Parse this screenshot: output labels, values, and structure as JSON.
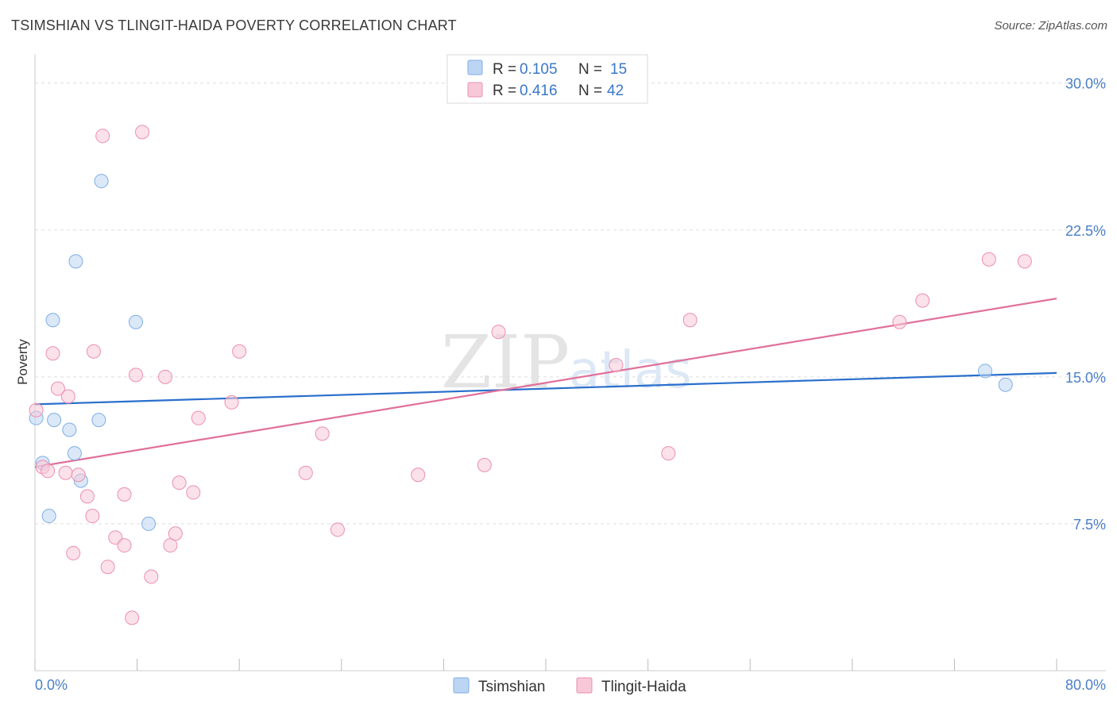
{
  "header": {
    "title": "TSIMSHIAN VS TLINGIT-HAIDA POVERTY CORRELATION CHART",
    "source": "Source: ZipAtlas.com"
  },
  "colors": {
    "tsimshian": "#7eaee6",
    "tsimshian_fill": "#bcd5f3",
    "tlingit": "#ec8fad",
    "tlingit_fill": "#f7c8d8",
    "tsimshian_line": "#2a6fcc",
    "tlingit_line": "#e0709a",
    "tick_text": "#4a7fc8"
  },
  "chart_data": {
    "type": "scatter",
    "title": "TSIMSHIAN VS TLINGIT-HAIDA POVERTY CORRELATION CHART",
    "xlabel": "",
    "ylabel": "Poverty",
    "xlim": [
      0,
      80
    ],
    "ylim": [
      0,
      31
    ],
    "x_tick_labels": [
      "0.0%",
      "80.0%"
    ],
    "y_ticks": [
      7.5,
      15.0,
      22.5,
      30.0
    ],
    "y_tick_labels": [
      "7.5%",
      "15.0%",
      "22.5%",
      "30.0%"
    ],
    "watermark": {
      "zip": "ZIP",
      "atlas": "atlas"
    },
    "legend": [
      {
        "name": "Tsimshian",
        "r_label": "R =",
        "r_value": "0.105",
        "n_label": "N =",
        "n_value": "15"
      },
      {
        "name": "Tlingit-Haida",
        "r_label": "R =",
        "r_value": "0.416",
        "n_label": "N =",
        "n_value": "42"
      }
    ],
    "series": [
      {
        "name": "Tsimshian",
        "points": [
          [
            0.1,
            12.9
          ],
          [
            0.6,
            10.6
          ],
          [
            1.1,
            7.9
          ],
          [
            1.4,
            17.9
          ],
          [
            1.5,
            12.8
          ],
          [
            2.7,
            12.3
          ],
          [
            3.1,
            11.1
          ],
          [
            3.2,
            20.9
          ],
          [
            3.6,
            9.7
          ],
          [
            5.2,
            25.0
          ],
          [
            5.0,
            12.8
          ],
          [
            7.9,
            17.8
          ],
          [
            8.9,
            7.5
          ],
          [
            74.4,
            15.3
          ],
          [
            76.0,
            14.6
          ]
        ],
        "trend": [
          [
            0,
            13.6
          ],
          [
            80,
            15.2
          ]
        ]
      },
      {
        "name": "Tlingit-Haida",
        "points": [
          [
            0.1,
            13.3
          ],
          [
            0.6,
            10.4
          ],
          [
            1.0,
            10.2
          ],
          [
            1.4,
            16.2
          ],
          [
            1.8,
            14.4
          ],
          [
            2.4,
            10.1
          ],
          [
            2.6,
            14.0
          ],
          [
            3.0,
            6.0
          ],
          [
            3.4,
            10.0
          ],
          [
            4.1,
            8.9
          ],
          [
            4.5,
            7.9
          ],
          [
            4.6,
            16.3
          ],
          [
            5.3,
            27.3
          ],
          [
            5.7,
            5.3
          ],
          [
            6.3,
            6.8
          ],
          [
            7.0,
            6.4
          ],
          [
            7.0,
            9.0
          ],
          [
            7.6,
            2.7
          ],
          [
            7.9,
            15.1
          ],
          [
            8.4,
            27.5
          ],
          [
            9.1,
            4.8
          ],
          [
            10.2,
            15.0
          ],
          [
            10.6,
            6.4
          ],
          [
            11.0,
            7.0
          ],
          [
            11.3,
            9.6
          ],
          [
            12.4,
            9.1
          ],
          [
            12.8,
            12.9
          ],
          [
            15.4,
            13.7
          ],
          [
            16.0,
            16.3
          ],
          [
            21.2,
            10.1
          ],
          [
            22.5,
            12.1
          ],
          [
            23.7,
            7.2
          ],
          [
            30.0,
            10.0
          ],
          [
            35.2,
            10.5
          ],
          [
            36.3,
            17.3
          ],
          [
            45.5,
            15.6
          ],
          [
            49.6,
            11.1
          ],
          [
            51.3,
            17.9
          ],
          [
            67.7,
            17.8
          ],
          [
            69.5,
            18.9
          ],
          [
            74.7,
            21.0
          ],
          [
            77.5,
            20.9
          ]
        ],
        "trend": [
          [
            0,
            10.4
          ],
          [
            80,
            19.0
          ]
        ]
      }
    ]
  }
}
